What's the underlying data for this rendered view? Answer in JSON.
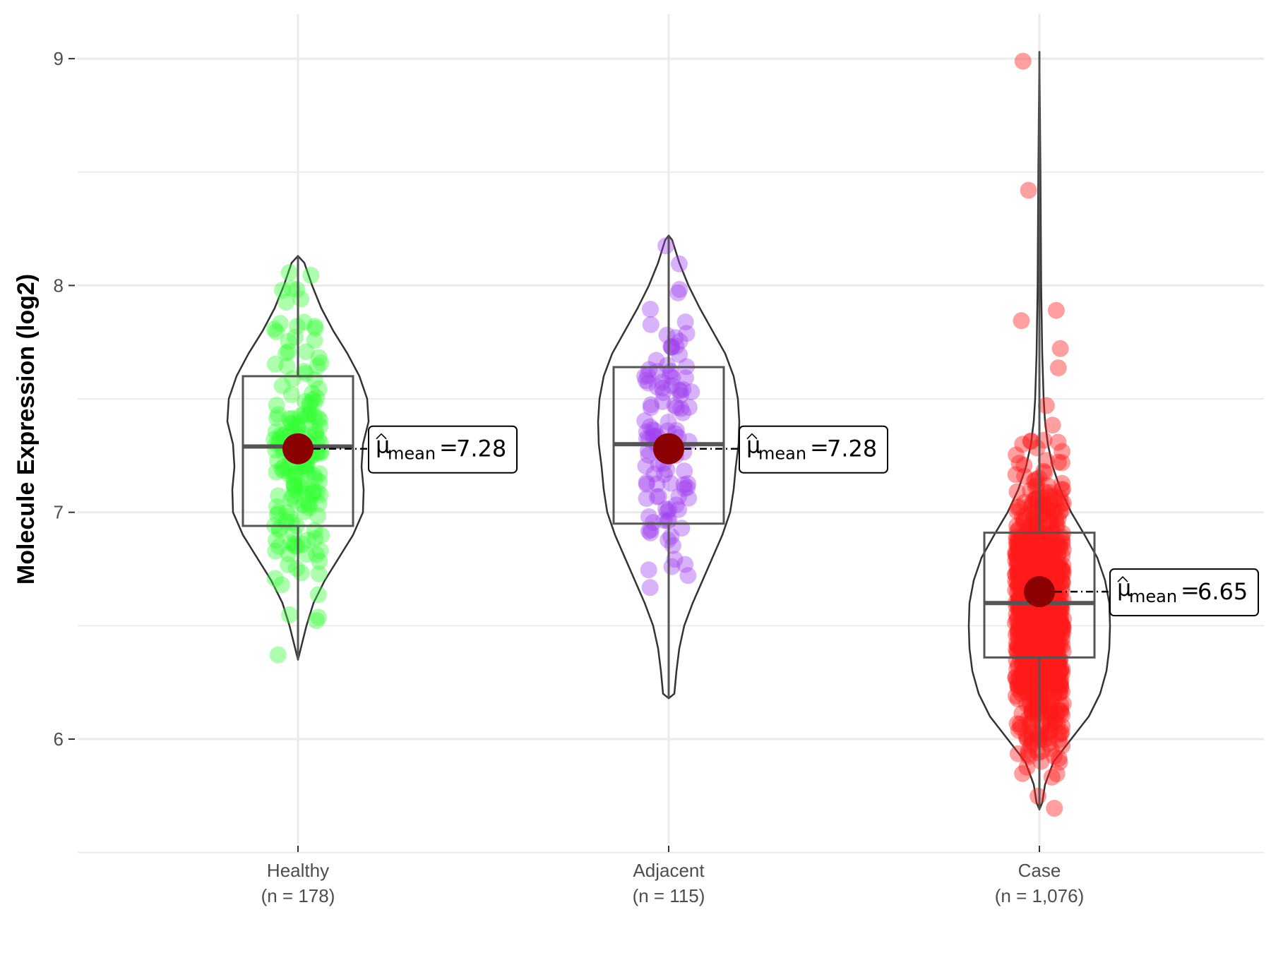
{
  "chart_data": {
    "type": "violin",
    "title": "",
    "xlabel": "",
    "ylabel": "Molecule Expression (log2)",
    "ylim": [
      5.5,
      9.2
    ],
    "yticks": [
      6,
      7,
      8,
      9
    ],
    "grid": true,
    "groups": [
      {
        "name": "Healthy",
        "n_label": "(n = 178)",
        "n": 178,
        "color": "#33ff33",
        "mean": 7.28,
        "mean_label": "7.28",
        "box": {
          "q1": 6.94,
          "median": 7.29,
          "q3": 7.6
        },
        "range": [
          6.35,
          8.13
        ],
        "violin": [
          [
            6.35,
            0.0
          ],
          [
            6.5,
            0.12
          ],
          [
            6.6,
            0.22
          ],
          [
            6.7,
            0.38
          ],
          [
            6.8,
            0.58
          ],
          [
            6.9,
            0.78
          ],
          [
            7.0,
            0.92
          ],
          [
            7.1,
            0.93
          ],
          [
            7.2,
            0.9
          ],
          [
            7.3,
            0.92
          ],
          [
            7.4,
            1.0
          ],
          [
            7.5,
            0.98
          ],
          [
            7.6,
            0.87
          ],
          [
            7.7,
            0.7
          ],
          [
            7.8,
            0.5
          ],
          [
            7.9,
            0.33
          ],
          [
            8.0,
            0.2
          ],
          [
            8.1,
            0.09
          ],
          [
            8.13,
            0.0
          ]
        ]
      },
      {
        "name": "Adjacent",
        "n_label": "(n = 115)",
        "n": 115,
        "color": "#a040f0",
        "mean": 7.28,
        "mean_label": "7.28",
        "box": {
          "q1": 6.95,
          "median": 7.3,
          "q3": 7.64
        },
        "range": [
          6.18,
          8.22
        ],
        "violin": [
          [
            6.18,
            0.0
          ],
          [
            6.2,
            0.08
          ],
          [
            6.3,
            0.11
          ],
          [
            6.4,
            0.15
          ],
          [
            6.5,
            0.22
          ],
          [
            6.6,
            0.34
          ],
          [
            6.7,
            0.48
          ],
          [
            6.8,
            0.62
          ],
          [
            6.9,
            0.76
          ],
          [
            7.0,
            0.87
          ],
          [
            7.1,
            0.92
          ],
          [
            7.2,
            0.95
          ],
          [
            7.3,
            0.99
          ],
          [
            7.4,
            1.0
          ],
          [
            7.5,
            0.98
          ],
          [
            7.6,
            0.92
          ],
          [
            7.7,
            0.8
          ],
          [
            7.8,
            0.62
          ],
          [
            7.9,
            0.44
          ],
          [
            8.0,
            0.28
          ],
          [
            8.1,
            0.15
          ],
          [
            8.2,
            0.05
          ],
          [
            8.22,
            0.0
          ]
        ]
      },
      {
        "name": "Case",
        "n_label": "(n = 1,076)",
        "n": 1076,
        "color": "#ff1a1a",
        "mean": 6.65,
        "mean_label": "6.65",
        "box": {
          "q1": 6.36,
          "median": 6.6,
          "q3": 6.91
        },
        "range": [
          5.69,
          9.03
        ],
        "violin": [
          [
            5.69,
            0.0
          ],
          [
            5.72,
            0.04
          ],
          [
            5.8,
            0.08
          ],
          [
            5.9,
            0.2
          ],
          [
            6.0,
            0.45
          ],
          [
            6.1,
            0.7
          ],
          [
            6.2,
            0.86
          ],
          [
            6.3,
            0.95
          ],
          [
            6.4,
            0.99
          ],
          [
            6.5,
            1.0
          ],
          [
            6.6,
            0.99
          ],
          [
            6.7,
            0.93
          ],
          [
            6.8,
            0.82
          ],
          [
            6.9,
            0.64
          ],
          [
            7.0,
            0.45
          ],
          [
            7.1,
            0.3
          ],
          [
            7.2,
            0.19
          ],
          [
            7.3,
            0.12
          ],
          [
            7.4,
            0.08
          ],
          [
            7.5,
            0.06
          ],
          [
            7.7,
            0.04
          ],
          [
            8.0,
            0.025
          ],
          [
            8.5,
            0.015
          ],
          [
            9.03,
            0.0
          ]
        ]
      }
    ],
    "mean_symbol": "μ",
    "mean_subscript": "mean",
    "mean_eq": "="
  }
}
